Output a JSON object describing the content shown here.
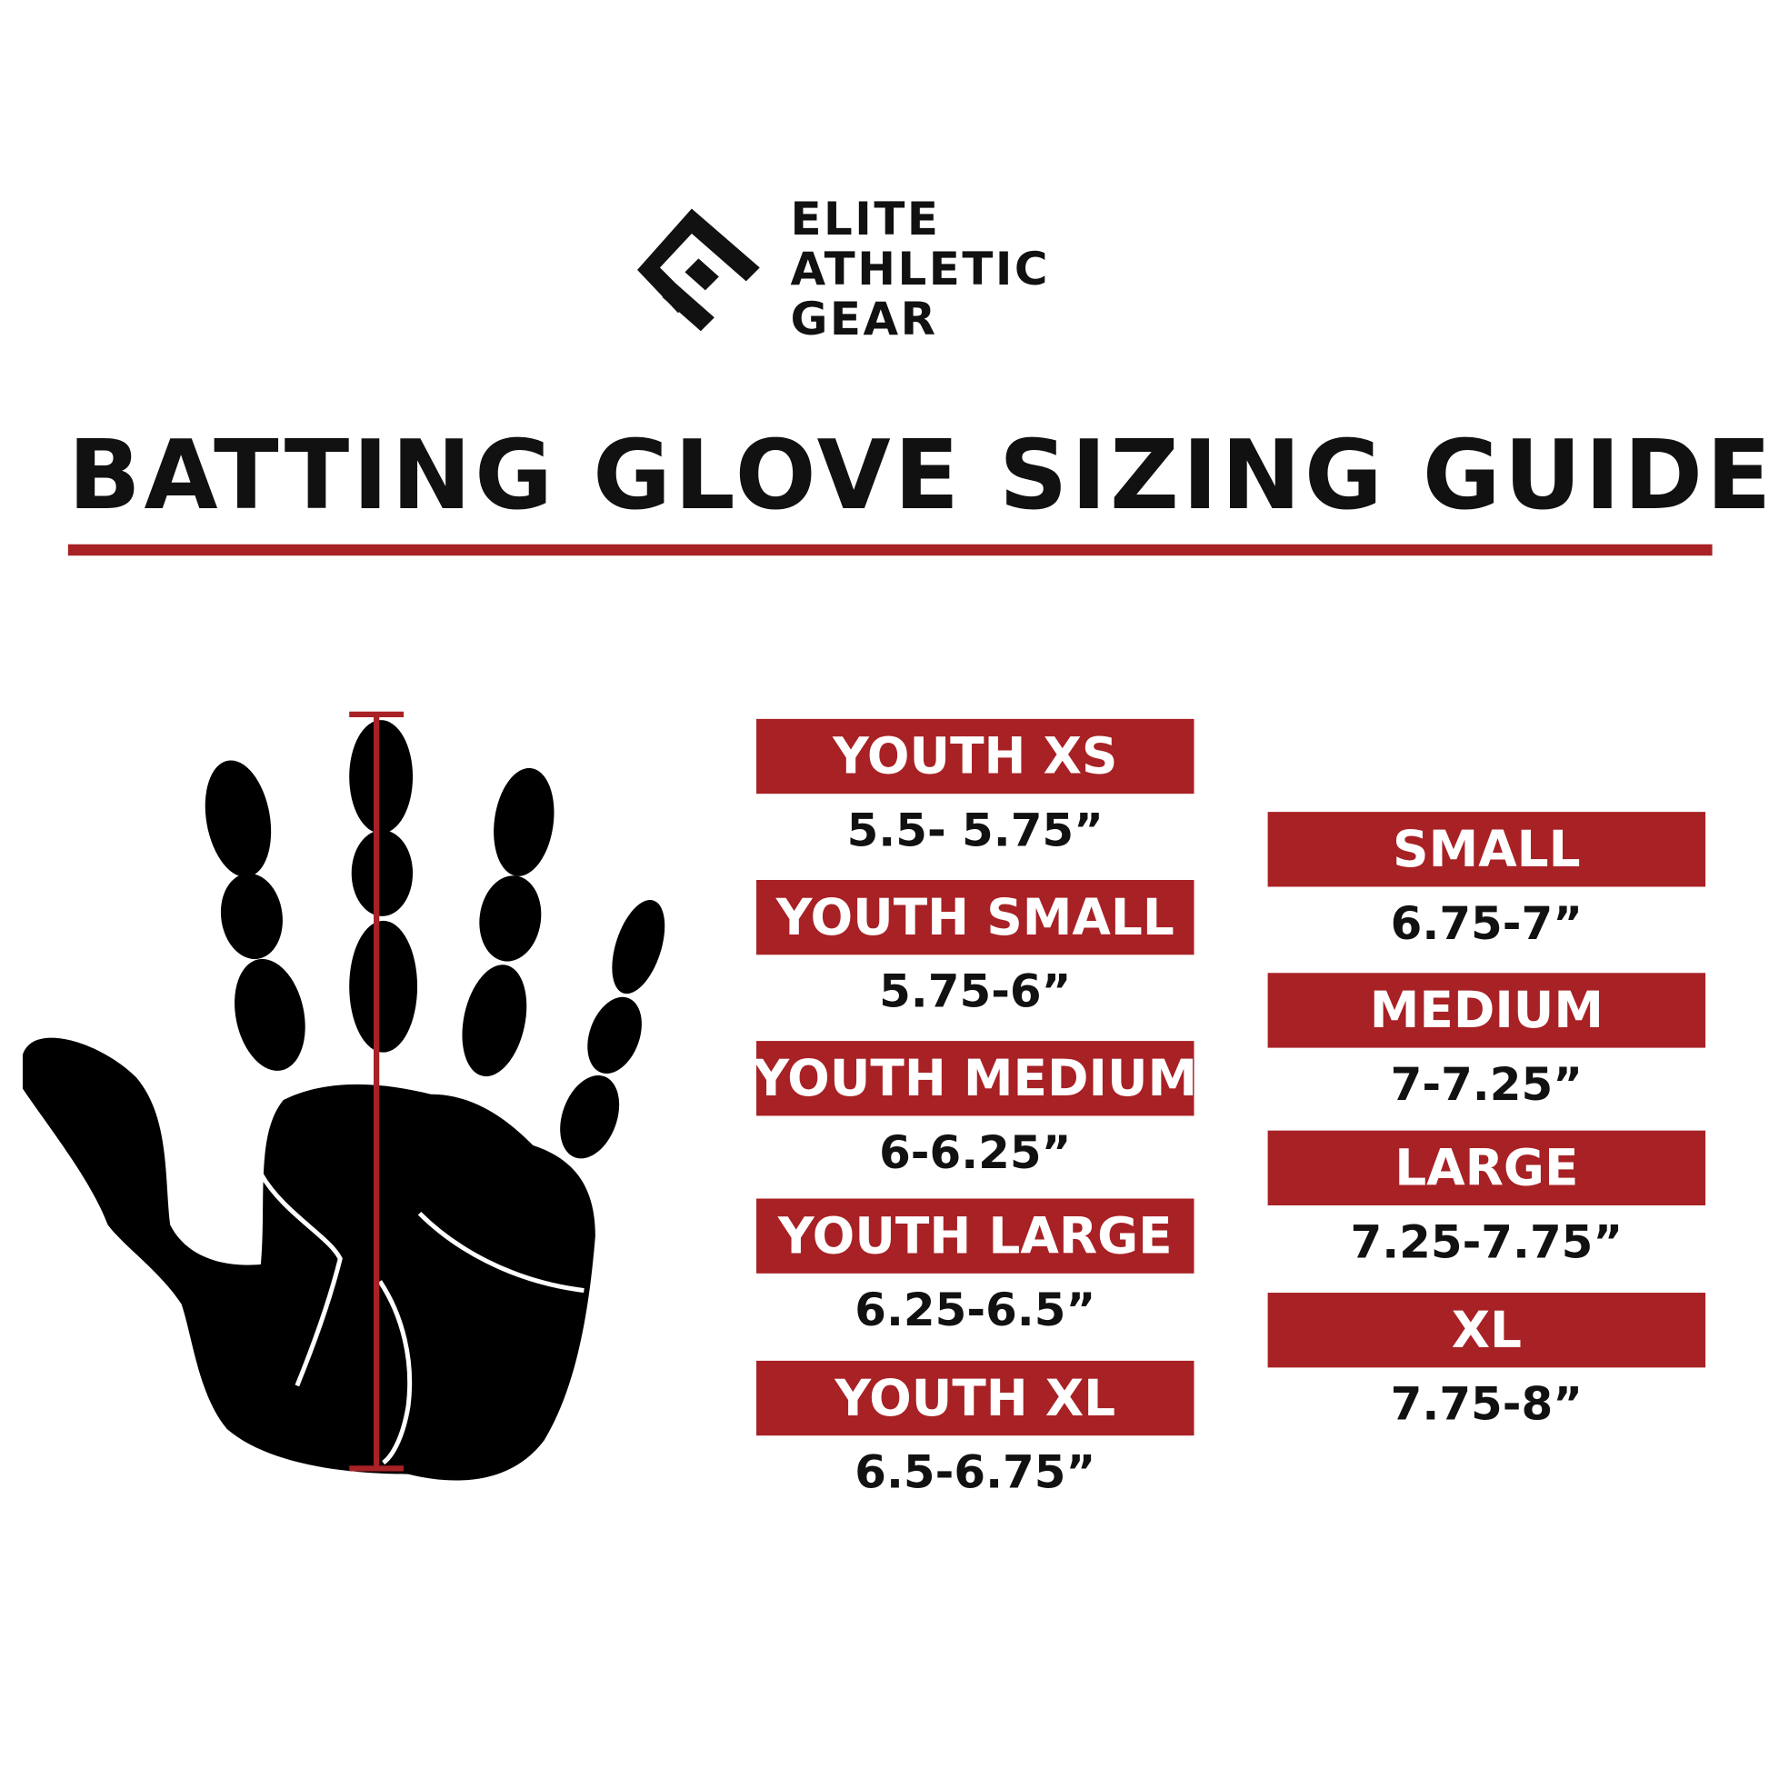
{
  "brand": {
    "logo_lines": [
      "ELITE",
      "ATHLETIC",
      "GEAR"
    ],
    "logo_icon": "e-chevron-logo"
  },
  "title": "BATTING GLOVE SIZING GUIDE",
  "colors": {
    "accent": "#a82125",
    "text": "#111111"
  },
  "illustration": {
    "icon": "hand-measurement-icon"
  },
  "youth_sizes": [
    {
      "label": "YOUTH XS",
      "range": "5.5- 5.75”"
    },
    {
      "label": "YOUTH SMALL",
      "range": "5.75-6”"
    },
    {
      "label": "YOUTH MEDIUM",
      "range": "6-6.25”"
    },
    {
      "label": "YOUTH LARGE",
      "range": "6.25-6.5”"
    },
    {
      "label": "YOUTH XL",
      "range": "6.5-6.75”"
    }
  ],
  "adult_sizes": [
    {
      "label": "SMALL",
      "range": "6.75-7”"
    },
    {
      "label": "MEDIUM",
      "range": "7-7.25”"
    },
    {
      "label": "LARGE",
      "range": "7.25-7.75”"
    },
    {
      "label": "XL",
      "range": "7.75-8”"
    }
  ]
}
